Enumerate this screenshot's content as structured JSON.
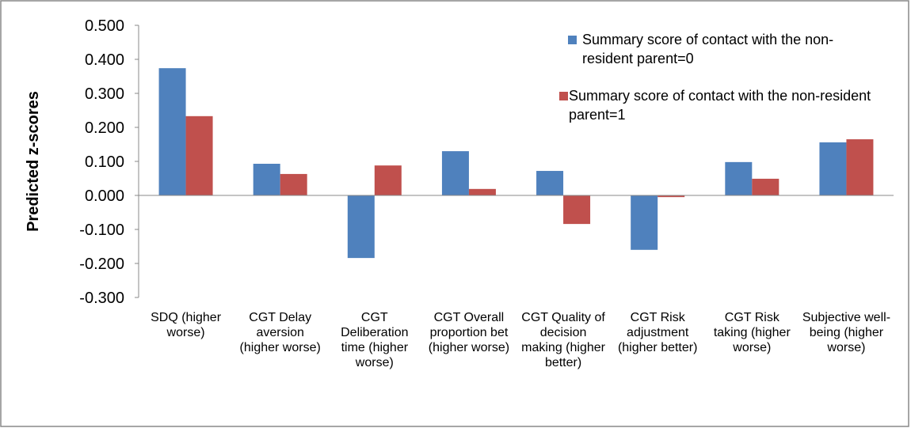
{
  "chart_data": {
    "type": "bar",
    "y_label": "Predicted z-scores",
    "categories": [
      "SDQ (higher worse)",
      "CGT Delay aversion (higher worse)",
      "CGT Deliberation time (higher worse)",
      "CGT Overall proportion bet (higher worse)",
      "CGT Quality of decision making (higher better)",
      "CGT Risk adjustment (higher better)",
      "CGT Risk taking (higher worse)",
      "Subjective well-being (higher worse)"
    ],
    "series": [
      {
        "name": "Summary score of contact with the non-resident parent=0",
        "color": "#4f81bd",
        "values": [
          0.374,
          0.093,
          -0.184,
          0.13,
          0.072,
          -0.16,
          0.098,
          0.156
        ]
      },
      {
        "name": "Summary score of contact with the non-resident parent=1",
        "color": "#c0504d",
        "values": [
          0.233,
          0.063,
          0.088,
          0.019,
          -0.084,
          -0.005,
          0.049,
          0.165
        ]
      }
    ],
    "ylim": [
      -0.3,
      0.5
    ],
    "yticks": [
      {
        "value": -0.3,
        "label": "-0.300"
      },
      {
        "value": -0.2,
        "label": "-0.200"
      },
      {
        "value": -0.1,
        "label": "-0.100"
      },
      {
        "value": 0,
        "label": "0.000"
      },
      {
        "value": 0.1,
        "label": "0.100"
      },
      {
        "value": 0.2,
        "label": "0.200"
      },
      {
        "value": 0.3,
        "label": "0.300"
      },
      {
        "value": 0.4,
        "label": "0.400"
      },
      {
        "value": 0.5,
        "label": "0.500"
      }
    ],
    "grid": false
  }
}
